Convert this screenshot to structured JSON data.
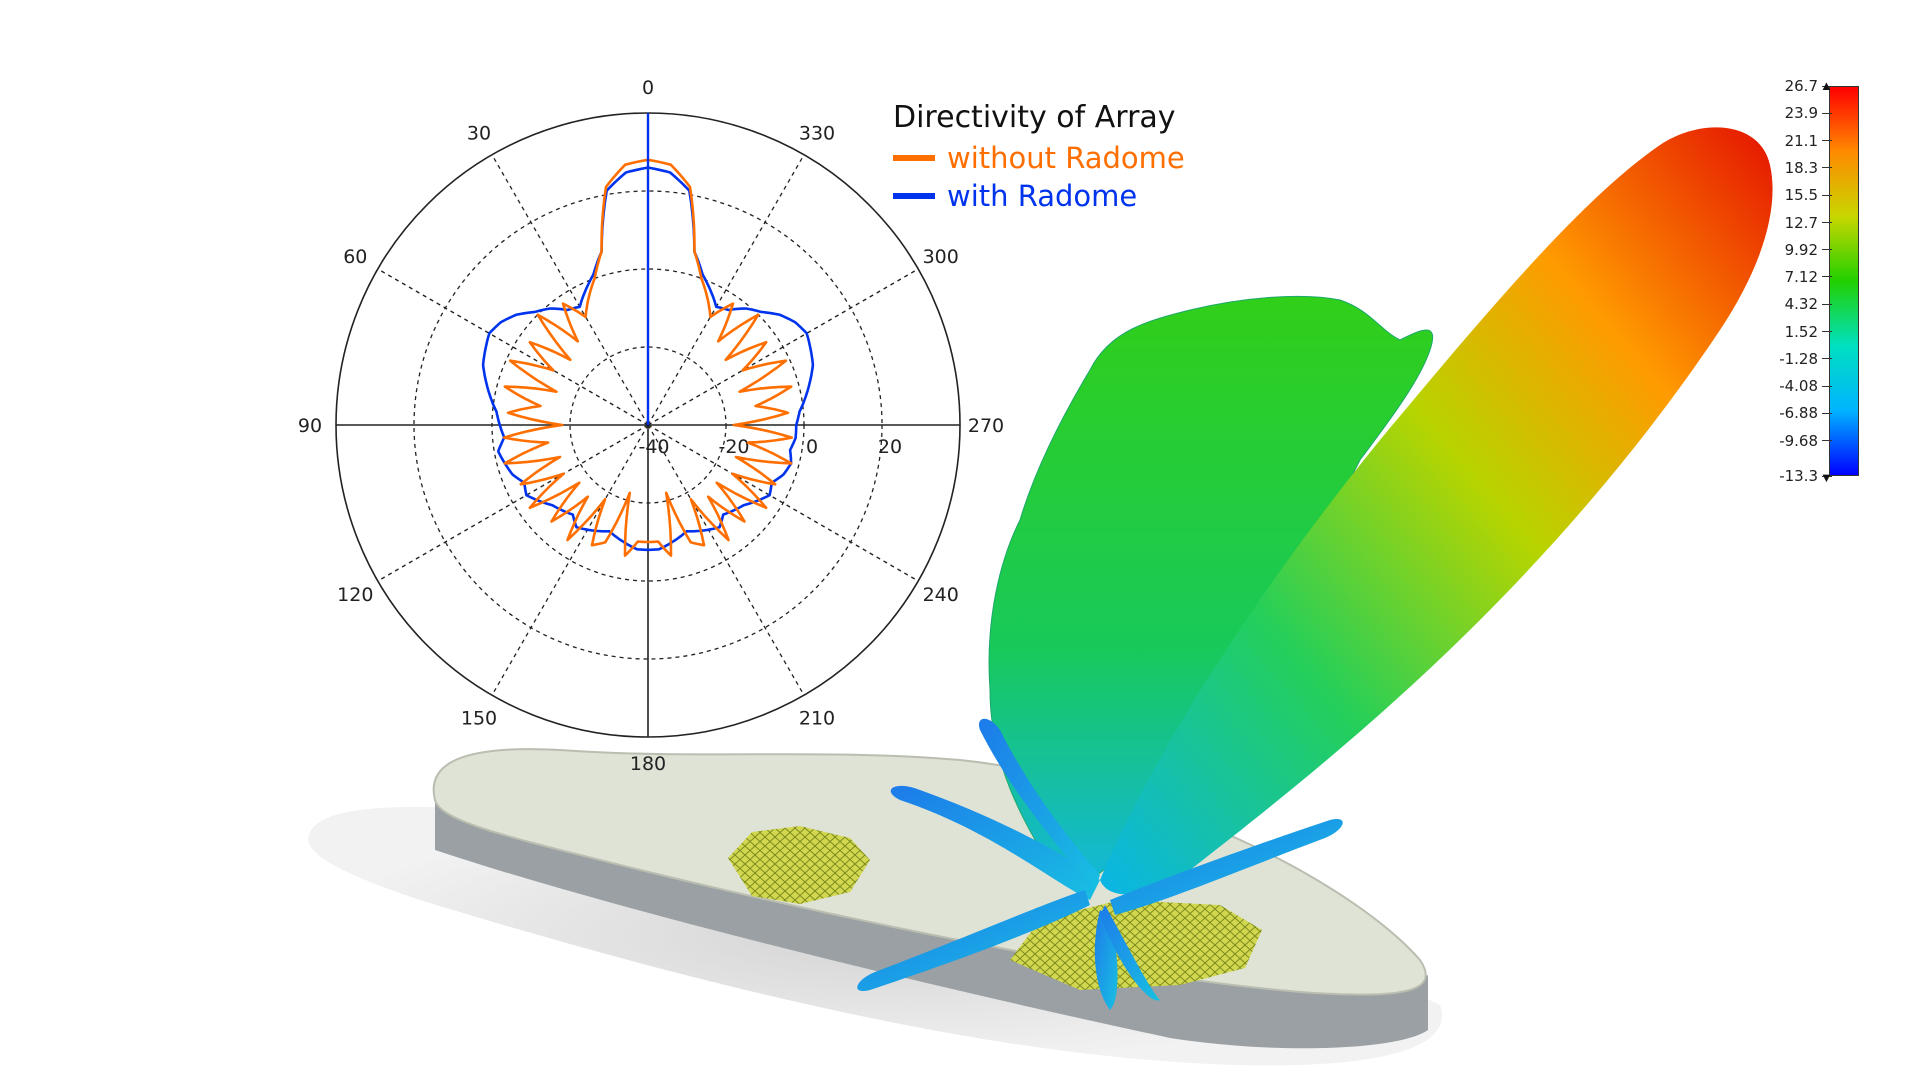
{
  "chart_data": {
    "type": "polar",
    "title": "Directivity of Array",
    "angle_ticks": [
      "0",
      "330",
      "300",
      "270",
      "240",
      "210",
      "180",
      "150",
      "120",
      "90",
      "60",
      "30"
    ],
    "radial_ticks": [
      "-40",
      "-20",
      "0",
      "20"
    ],
    "radial_range": [
      -40,
      40
    ],
    "grid": true,
    "legend_position": "top-right",
    "series": [
      {
        "name": "without Radome",
        "color": "#ff6f00",
        "angles": [
          0,
          5,
          10,
          15,
          20,
          25,
          30,
          35,
          40,
          45,
          50,
          55,
          60,
          65,
          70,
          75,
          80,
          85,
          90,
          95,
          100,
          105,
          110,
          115,
          120,
          125,
          130,
          135,
          140,
          145,
          150,
          155,
          160,
          165,
          170,
          175,
          180,
          185,
          190,
          195,
          200,
          205,
          210,
          215,
          220,
          225,
          230,
          235,
          240,
          245,
          250,
          255,
          260,
          265,
          270,
          275,
          280,
          285,
          290,
          295,
          300,
          305,
          310,
          315,
          320,
          325,
          330,
          335,
          340,
          345,
          350,
          355
        ],
        "values": [
          28,
          27,
          22,
          6,
          0,
          -4,
          -8,
          -2,
          -12,
          0,
          -14,
          -3,
          -12,
          -1,
          -15,
          -2,
          -12,
          -4,
          -18,
          -3,
          -14,
          -2,
          -16,
          -4,
          -15,
          -3,
          -17,
          -5,
          -16,
          -4,
          -18,
          -6,
          -8,
          -22,
          -6,
          -10,
          -10,
          -10,
          -6,
          -22,
          -8,
          -6,
          -18,
          -4,
          -16,
          -5,
          -17,
          -3,
          -15,
          -4,
          -16,
          -2,
          -14,
          -3,
          -18,
          -4,
          -12,
          -2,
          -15,
          -1,
          -12,
          -3,
          -14,
          0,
          -12,
          -2,
          -8,
          -4,
          0,
          6,
          22,
          27
        ]
      },
      {
        "name": "with Radome",
        "color": "#0033ee",
        "angles": [
          0,
          5,
          10,
          15,
          20,
          25,
          30,
          35,
          40,
          45,
          50,
          55,
          60,
          65,
          70,
          75,
          80,
          85,
          90,
          95,
          100,
          105,
          110,
          115,
          120,
          125,
          130,
          135,
          140,
          145,
          150,
          155,
          160,
          165,
          170,
          175,
          180,
          185,
          190,
          195,
          200,
          205,
          210,
          215,
          220,
          225,
          230,
          235,
          240,
          245,
          250,
          255,
          260,
          265,
          270,
          275,
          280,
          285,
          290,
          295,
          300,
          305,
          310,
          315,
          320,
          325,
          330,
          335,
          340,
          345,
          350,
          355
        ],
        "values": [
          26,
          25,
          21,
          6,
          1,
          -2,
          -5,
          -4,
          -1,
          1,
          4,
          6,
          7,
          6,
          5,
          3,
          1,
          -1,
          -2,
          -3,
          -1,
          -2,
          -3,
          -5,
          -4,
          -6,
          -8,
          -9,
          -10,
          -8,
          -9,
          -10,
          -11,
          -10,
          -9,
          -8,
          -8,
          -8,
          -9,
          -10,
          -11,
          -10,
          -9,
          -8,
          -10,
          -9,
          -8,
          -6,
          -4,
          -5,
          -3,
          -2,
          -3,
          -2,
          -2,
          -1,
          1,
          3,
          5,
          6,
          7,
          6,
          4,
          1,
          -1,
          -4,
          -5,
          -2,
          1,
          6,
          21,
          25
        ]
      }
    ]
  },
  "colorbar": {
    "top_label": "26.7",
    "bottom_label": "-13.3",
    "ticks": [
      "23.9",
      "21.1",
      "18.3",
      "15.5",
      "12.7",
      "9.92",
      "7.12",
      "4.32",
      "1.52",
      "-1.28",
      "-4.08",
      "-6.88",
      "-9.68"
    ],
    "range": [
      -13.3,
      26.7
    ],
    "colors": [
      "#0000ff",
      "#00b4ff",
      "#00e0c0",
      "#22d000",
      "#c8d600",
      "#ff8a00",
      "#ff0000"
    ]
  },
  "scene": {
    "radome_color": "#c9cdbf",
    "array_color": "#c8d24a",
    "beam_colors": [
      "#0a5be0",
      "#0fb9e6",
      "#19c84a",
      "#33d117",
      "#d7d600",
      "#ff4a00",
      "#e60000"
    ]
  }
}
